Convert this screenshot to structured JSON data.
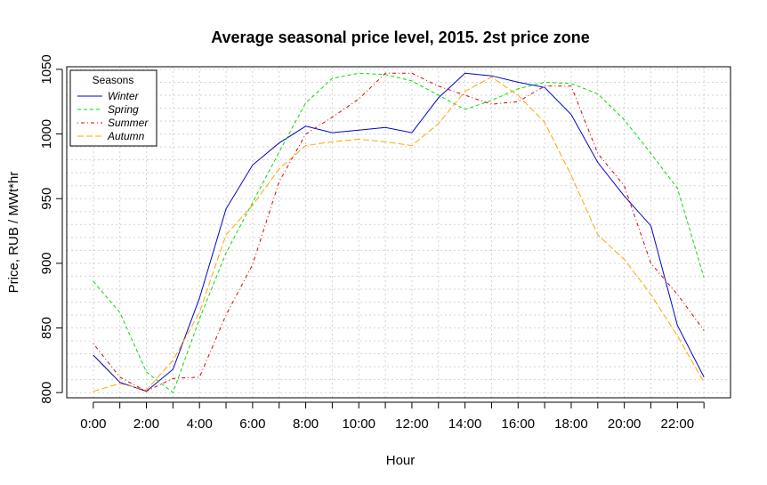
{
  "chart_data": {
    "type": "line",
    "title": "Average seasonal price level, 2015. 2st price zone",
    "xlabel": "Hour",
    "ylabel": "Price, RUB / MWt*hr",
    "x": [
      0,
      1,
      2,
      3,
      4,
      5,
      6,
      7,
      8,
      9,
      10,
      11,
      12,
      13,
      14,
      15,
      16,
      17,
      18,
      19,
      20,
      21,
      22,
      23
    ],
    "xlim": [
      -1,
      24
    ],
    "ylim": [
      796,
      1052
    ],
    "x_ticks": [
      0,
      2,
      4,
      6,
      8,
      10,
      12,
      14,
      16,
      18,
      20,
      22
    ],
    "x_tick_labels": [
      "0:00",
      "2:00",
      "4:00",
      "6:00",
      "8:00",
      "10:00",
      "12:00",
      "14:00",
      "16:00",
      "18:00",
      "20:00",
      "22:00"
    ],
    "y_ticks": [
      800,
      850,
      900,
      950,
      1000,
      1050
    ],
    "y_tick_labels": [
      "800",
      "850",
      "900",
      "950",
      "1000",
      "1050"
    ],
    "grid": true,
    "legend": {
      "title": "Seasons",
      "position": "top-left"
    },
    "series": [
      {
        "name": "Winter",
        "color": "#0000cc",
        "dash": "solid",
        "values": [
          829,
          808,
          801,
          818,
          873,
          942,
          976,
          993,
          1006,
          1001,
          1003,
          1005,
          1001,
          1028,
          1047,
          1045,
          1040,
          1036,
          1015,
          978,
          952,
          929,
          852,
          812
        ]
      },
      {
        "name": "Spring",
        "color": "#00dd00",
        "dash": "dashed",
        "values": [
          886,
          862,
          816,
          800,
          857,
          908,
          947,
          986,
          1024,
          1043,
          1047,
          1046,
          1041,
          1030,
          1019,
          1026,
          1035,
          1040,
          1039,
          1031,
          1011,
          985,
          958,
          889
        ]
      },
      {
        "name": "Summer",
        "color": "#dd0000",
        "dash": "dotdash",
        "values": [
          838,
          812,
          801,
          811,
          812,
          860,
          899,
          963,
          1000,
          1013,
          1027,
          1047,
          1047,
          1037,
          1030,
          1023,
          1025,
          1037,
          1037,
          985,
          960,
          900,
          876,
          848
        ]
      },
      {
        "name": "Autumn",
        "color": "#ffa500",
        "dash": "longdash",
        "values": [
          801,
          807,
          802,
          825,
          862,
          922,
          945,
          973,
          991,
          994,
          996,
          994,
          991,
          1008,
          1033,
          1044,
          1030,
          1009,
          968,
          922,
          903,
          876,
          844,
          808
        ]
      }
    ]
  }
}
